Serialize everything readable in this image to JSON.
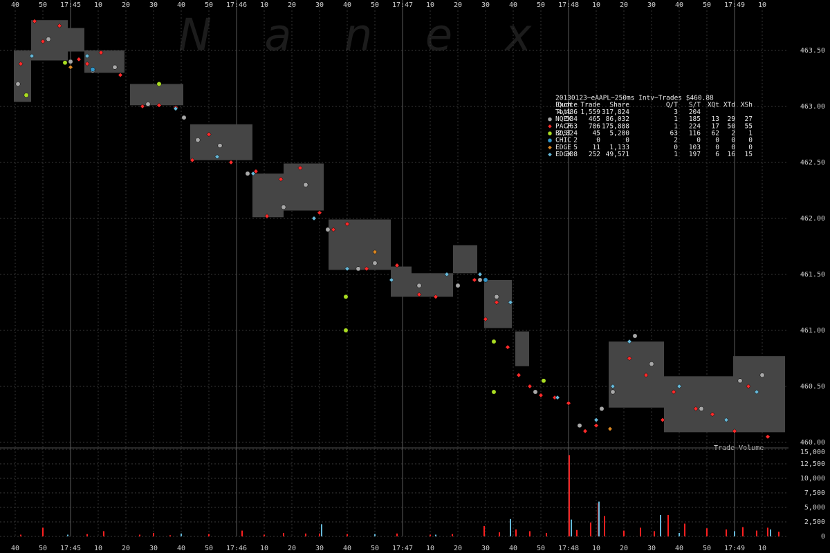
{
  "chart_data": [
    {
      "type": "scatter",
      "watermark": "N a n e x",
      "xlim": [
        34.5,
        319.5
      ],
      "xticks": [
        40,
        50,
        {
          "value": 60,
          "label": "17:45"
        },
        {
          "value": 70,
          "label": "10"
        },
        {
          "value": 80,
          "label": "20"
        },
        {
          "value": 90,
          "label": "30"
        },
        {
          "value": 100,
          "label": "40"
        },
        {
          "value": 110,
          "label": "50"
        },
        {
          "value": 120,
          "label": "17:46"
        },
        {
          "value": 130,
          "label": "10"
        },
        {
          "value": 140,
          "label": "20"
        },
        {
          "value": 150,
          "label": "30"
        },
        {
          "value": 160,
          "label": "40"
        },
        {
          "value": 170,
          "label": "50"
        },
        {
          "value": 180,
          "label": "17:47"
        },
        {
          "value": 190,
          "label": "10"
        },
        {
          "value": 200,
          "label": "20"
        },
        {
          "value": 210,
          "label": "30"
        },
        {
          "value": 220,
          "label": "40"
        },
        {
          "value": 230,
          "label": "50"
        },
        {
          "value": 240,
          "label": "17:48"
        },
        {
          "value": 250,
          "label": "10"
        },
        {
          "value": 260,
          "label": "20"
        },
        {
          "value": 270,
          "label": "30"
        },
        {
          "value": 280,
          "label": "40"
        },
        {
          "value": 290,
          "label": "50"
        },
        {
          "value": 300,
          "label": "17:49"
        },
        {
          "value": 310,
          "label": "10"
        }
      ],
      "ylim": [
        459.95,
        463.95
      ],
      "yticks": [
        {
          "value": 460,
          "label": "460.00"
        },
        {
          "value": 460.5,
          "label": "460.50"
        },
        {
          "value": 461,
          "label": "461.00"
        },
        {
          "value": 461.5,
          "label": "461.50"
        },
        {
          "value": 462,
          "label": "462.00"
        },
        {
          "value": 462.5,
          "label": "462.50"
        },
        {
          "value": 463,
          "label": "463.00"
        },
        {
          "value": 463.5,
          "label": "463.50"
        }
      ],
      "grid": true,
      "bands": {
        "color": "#454545",
        "x_start": [
          39.5,
          45.75,
          59,
          65,
          81.5,
          103.25,
          125.75,
          137,
          153.25,
          175.75,
          183.25,
          198.25,
          209.5,
          220.75,
          254.5,
          274.5,
          299.5
        ],
        "x_end": [
          45.75,
          59,
          65,
          79.5,
          100.75,
          125.75,
          137,
          151.5,
          175.75,
          183.25,
          198.25,
          207,
          219.5,
          225.75,
          274.5,
          299.5,
          318.25
        ],
        "low": [
          463.04,
          463.41,
          463.49,
          463.3,
          463.01,
          462.52,
          462.01,
          462.07,
          461.54,
          461.3,
          461.3,
          461.51,
          461.02,
          460.68,
          460.31,
          460.09,
          460.09
        ],
        "high": [
          463.5,
          463.77,
          463.7,
          463.5,
          463.2,
          462.84,
          462.4,
          462.49,
          461.99,
          461.57,
          461.51,
          461.76,
          461.45,
          460.99,
          460.9,
          460.59,
          460.77
        ]
      },
      "series": [
        {
          "name": "NQEX",
          "color": "#a8a8a8",
          "marker": "circle",
          "x": [
            41,
            52,
            60,
            68,
            76,
            88,
            101,
            106,
            114,
            124,
            137,
            145,
            153,
            164,
            170,
            186,
            200,
            208,
            214,
            228,
            244,
            252,
            256,
            264,
            270,
            288,
            302,
            310
          ],
          "values": [
            463.2,
            463.6,
            463.4,
            463.32,
            463.35,
            463.02,
            462.9,
            462.7,
            462.65,
            462.4,
            462.1,
            462.3,
            461.9,
            461.55,
            461.6,
            461.4,
            461.4,
            461.45,
            461.3,
            460.45,
            460.15,
            460.3,
            460.45,
            460.95,
            460.7,
            460.3,
            460.55,
            460.6
          ]
        },
        {
          "name": "PACF",
          "color": "#ff2a2a",
          "marker": "diamond",
          "x": [
            42,
            47,
            50,
            56,
            63,
            66,
            71,
            78,
            86,
            92,
            98,
            104,
            110,
            118,
            127,
            131,
            136,
            143,
            150,
            155,
            160,
            167,
            178,
            186,
            192,
            206,
            210,
            214,
            218,
            222,
            226,
            230,
            235,
            240,
            246,
            250,
            262,
            268,
            274,
            278,
            286,
            292,
            300,
            305,
            312
          ],
          "values": [
            463.38,
            463.76,
            463.58,
            463.72,
            463.42,
            463.38,
            463.48,
            463.28,
            463.0,
            463.01,
            462.99,
            462.52,
            462.75,
            462.5,
            462.42,
            462.02,
            462.35,
            462.45,
            462.05,
            461.9,
            461.95,
            461.55,
            461.58,
            461.32,
            461.3,
            461.45,
            461.1,
            461.25,
            460.85,
            460.6,
            460.5,
            460.42,
            460.4,
            460.35,
            460.1,
            460.15,
            460.75,
            460.6,
            460.2,
            460.45,
            460.3,
            460.25,
            460.1,
            460.5,
            460.05
          ]
        },
        {
          "name": "BOST",
          "color": "#aadd22",
          "marker": "circle",
          "x": [
            44,
            58,
            92,
            159.5,
            159.5,
            213,
            213,
            231
          ],
          "values": [
            463.1,
            463.39,
            463.2,
            461.3,
            461.0,
            460.9,
            460.45,
            460.55
          ]
        },
        {
          "name": "CHIC",
          "color": "#3399cc",
          "marker": "circle",
          "x": [
            68,
            210
          ],
          "values": [
            463.33,
            461.45
          ]
        },
        {
          "name": "EDGE",
          "color": "#dd8822",
          "marker": "diamond",
          "x": [
            60,
            170,
            255
          ],
          "values": [
            463.35,
            461.7,
            460.12
          ]
        },
        {
          "name": "EDGX",
          "color": "#66b8d8",
          "marker": "diamond",
          "x": [
            46,
            66,
            98,
            113,
            126,
            148,
            160,
            176,
            196,
            208,
            219,
            236,
            250,
            256,
            262,
            280,
            297,
            308
          ],
          "values": [
            463.45,
            463.45,
            462.98,
            462.55,
            462.4,
            462.0,
            461.55,
            461.45,
            461.5,
            461.5,
            461.25,
            460.4,
            460.2,
            460.5,
            460.9,
            460.5,
            460.2,
            460.45
          ]
        }
      ],
      "stats": {
        "title": "20130123~eAAPL~250ms Intv~Trades $460.88",
        "columns": [
          "Exch",
          "Quote",
          "Trade",
          "Share",
          "Q/T",
          "S/T",
          "XQt",
          "XTd",
          "XSh"
        ],
        "rows": [
          {
            "name": "Totl",
            "values": [
              "4,486",
              "1,559",
              "317,824",
              "3",
              "204"
            ]
          },
          {
            "values": [
              "584",
              "465",
              "86,032",
              "1",
              "185",
              "13",
              "29",
              "27"
            ]
          },
          {
            "values": [
              "763",
              "786",
              "175,888",
              "1",
              "224",
              "17",
              "50",
              "55"
            ]
          },
          {
            "values": [
              "2,824",
              "45",
              "5,200",
              "63",
              "116",
              "62",
              "2",
              "1"
            ]
          },
          {
            "values": [
              "2",
              "0",
              "0",
              "2",
              "0",
              "0",
              "0",
              "0"
            ]
          },
          {
            "values": [
              "5",
              "11",
              "1,133",
              "0",
              "103",
              "0",
              "0",
              "0"
            ]
          },
          {
            "values": [
              "308",
              "252",
              "49,571",
              "1",
              "197",
              "6",
              "16",
              "15"
            ]
          }
        ]
      }
    },
    {
      "type": "bar",
      "title": "Trade Volume",
      "xlim": [
        34.5,
        319.5
      ],
      "xticks": [
        40,
        50,
        {
          "value": 60,
          "label": "17:45"
        },
        {
          "value": 70,
          "label": "10"
        },
        {
          "value": 80,
          "label": "20"
        },
        {
          "value": 90,
          "label": "30"
        },
        {
          "value": 100,
          "label": "40"
        },
        {
          "value": 110,
          "label": "50"
        },
        {
          "value": 120,
          "label": "17:46"
        },
        {
          "value": 130,
          "label": "10"
        },
        {
          "value": 140,
          "label": "20"
        },
        {
          "value": 150,
          "label": "30"
        },
        {
          "value": 160,
          "label": "40"
        },
        {
          "value": 170,
          "label": "50"
        },
        {
          "value": 180,
          "label": "17:47"
        },
        {
          "value": 190,
          "label": "10"
        },
        {
          "value": 200,
          "label": "20"
        },
        {
          "value": 210,
          "label": "30"
        },
        {
          "value": 220,
          "label": "40"
        },
        {
          "value": 230,
          "label": "50"
        },
        {
          "value": 240,
          "label": "17:48"
        },
        {
          "value": 250,
          "label": "10"
        },
        {
          "value": 260,
          "label": "20"
        },
        {
          "value": 270,
          "label": "30"
        },
        {
          "value": 280,
          "label": "40"
        },
        {
          "value": 290,
          "label": "50"
        },
        {
          "value": 300,
          "label": "17:49"
        },
        {
          "value": 310,
          "label": "10"
        }
      ],
      "ylim": [
        0,
        15240
      ],
      "yticks": [
        0,
        {
          "value": 2500,
          "label": "2,500"
        },
        {
          "value": 5000,
          "label": "5,000"
        },
        {
          "value": 7500,
          "label": "7,500"
        },
        {
          "value": 10000,
          "label": "10,000"
        },
        {
          "value": 12500,
          "label": "12,500"
        },
        {
          "value": 15000,
          "label": "15,000"
        }
      ],
      "grid": true,
      "series": [
        {
          "color": "#ff2020",
          "x": [
            42,
            50,
            66,
            72,
            85,
            90,
            96,
            110,
            122,
            130,
            137,
            145,
            150,
            160,
            170,
            178,
            190,
            198,
            209.5,
            215,
            221,
            226,
            232,
            240.25,
            243,
            248,
            250.75,
            253,
            260,
            266,
            271,
            276,
            282,
            290,
            297,
            303,
            308,
            312,
            316
          ],
          "values": [
            300,
            1500,
            400,
            900,
            300,
            600,
            200,
            400,
            1000,
            300,
            600,
            500,
            500,
            400,
            300,
            500,
            300,
            400,
            1800,
            700,
            1200,
            900,
            600,
            14000,
            1100,
            2400,
            5700,
            3500,
            1000,
            1500,
            900,
            3700,
            2200,
            1400,
            1200,
            1600,
            1000,
            1500,
            800
          ]
        },
        {
          "color": "#66b8d8",
          "x": [
            59,
            100,
            150.75,
            170,
            192,
            219,
            241,
            251,
            273.25,
            280,
            300,
            313
          ],
          "values": [
            300,
            500,
            2100,
            400,
            300,
            3000,
            2900,
            6000,
            3700,
            600,
            900,
            1200
          ]
        }
      ]
    }
  ]
}
